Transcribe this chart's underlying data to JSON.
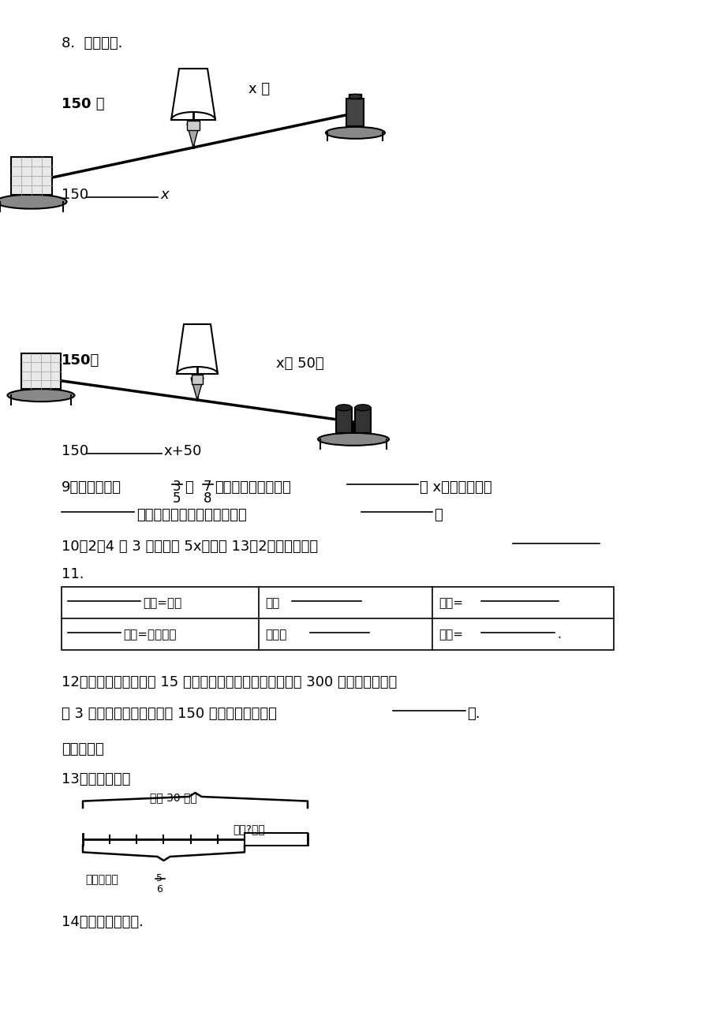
{
  "bg_color": "#ffffff",
  "q8_header": "8.  看图填空.",
  "label_150ke_1": "150 克",
  "label_xke_1": "x 克",
  "fill1_left": "150",
  "fill1_right": "x",
  "label_150ke_2": "150克",
  "label_xke2": "x克 50克",
  "fill2_left": "150",
  "fill2_right": "x+50",
  "q9_line1a": "9．一个数除以",
  "q9_frac1_n": "3",
  "q9_frac1_d": "5",
  "q9_mid": "是",
  "q9_frac2_n": "7",
  "q9_frac2_d": "8",
  "q9_line1b": "，求这个数。可以设",
  "q9_line1c": "为 x，列出方程是",
  "q9_line2a": "。也可以用乘法计算，列式为",
  "q9_line2b": "。",
  "q10": "10．2．4 乘 3 的积再加 5x，和是 13．2，列出方程是",
  "q11": "11.",
  "table_row1_col1": "时间=路程",
  "table_row1_col2": "总价",
  "table_row1_col3": "数量=",
  "table_row2_col1": "时间=工作总量",
  "table_row2_col2": "总产量",
  "table_row2_col3": "数量=",
  "q12_line1": "12．先锋农具厂原计划 15 天生产一批农具．实际每天生产 300 件，这样不但提",
  "q12_line2a": "前 3 天完成了任务，还超额 150 件，计划每天生产",
  "q12_line2b": "件.",
  "section4": "四、解答题",
  "q13": "13．看图列方程",
  "q13_label_top": "全长 30 千米",
  "q13_label_remain": "还剩?千米",
  "q13_label_bot": "修了全长的",
  "q13_frac_n": "5",
  "q13_frac_d": "6",
  "q14": "14．看图列出方程.",
  "fs": 13,
  "fs_small": 10,
  "fs_table": 11
}
